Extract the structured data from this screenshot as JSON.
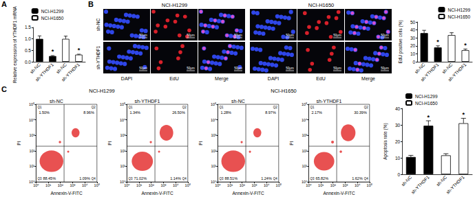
{
  "panel_labels": [
    "A",
    "B",
    "C"
  ],
  "chart_data": [
    {
      "type": "bar",
      "ylabel": "Relative expression of YTHDF1 mRNA",
      "categories": [
        "sh-NC",
        "sh-YTHDF1",
        "sh-NC",
        "sh-YTHDF1"
      ],
      "series": [
        {
          "name": "NCI-H1299",
          "color": "#000000",
          "values": [
            1.0,
            0.25,
            null,
            null
          ],
          "errors": [
            0.13,
            0.02,
            null,
            null
          ]
        },
        {
          "name": "NCI-H1650",
          "color": "#ffffff",
          "values": [
            null,
            null,
            1.0,
            0.31
          ],
          "errors": [
            null,
            null,
            0.12,
            0.02
          ]
        }
      ],
      "significance": [
        null,
        "*",
        null,
        "*"
      ],
      "ylim": [
        0,
        1.5
      ],
      "yticks": [
        {
          "value": 0,
          "label": "0.0"
        },
        0.5,
        {
          "value": 1,
          "label": "1.0"
        },
        1.5
      ],
      "legend": "top",
      "grid": false
    },
    {
      "type": "bar",
      "ylabel": "EdU positive cells (%)",
      "categories": [
        "sh-NC",
        "sh-YTHDF1",
        "sh-NC",
        "sh-YTHDF1"
      ],
      "series": [
        {
          "name": "NCI-H1299",
          "color": "#000000",
          "values": [
            36,
            18,
            null,
            null
          ],
          "errors": [
            3.5,
            2,
            null,
            null
          ]
        },
        {
          "name": "NCI-H1650",
          "color": "#ffffff",
          "values": [
            null,
            null,
            33.5,
            14.5
          ],
          "errors": [
            null,
            null,
            3,
            1.5
          ]
        }
      ],
      "significance": [
        null,
        "*",
        null,
        "*"
      ],
      "ylim": [
        0,
        50
      ],
      "yticks": [
        0,
        10,
        20,
        30,
        40,
        50
      ],
      "legend": "top-right",
      "grid": false
    },
    {
      "type": "bar",
      "ylabel": "Apoptosis rate (%)",
      "categories": [
        "sh-NC",
        "sh-YTHDF1",
        "sh-NC",
        "sh-YTHDF1"
      ],
      "series": [
        {
          "name": "NCI-H1299",
          "color": "#000000",
          "values": [
            10.5,
            29.5,
            null,
            null
          ],
          "errors": [
            1,
            3,
            null,
            null
          ]
        },
        {
          "name": "NCI-H1650",
          "color": "#ffffff",
          "values": [
            null,
            null,
            11.5,
            31
          ],
          "errors": [
            null,
            null,
            1,
            3
          ]
        }
      ],
      "significance": [
        null,
        "*",
        null,
        "*"
      ],
      "ylim": [
        0,
        40
      ],
      "yticks": [
        0,
        10,
        20,
        30,
        40
      ],
      "legend": "top-left",
      "grid": false
    }
  ],
  "microscopy": {
    "groups": [
      "NCI-H1299",
      "NCI-H1650"
    ],
    "rows": [
      "sh-NC",
      "sh-YTHDF1"
    ],
    "channels": [
      "DAPI",
      "EdU",
      "Merge"
    ],
    "scale_bar": "50μm"
  },
  "flow_cytometry": {
    "type": "scatter",
    "xlabel": "Annexin-V-FITC",
    "ylabel": "PI",
    "log": true,
    "xlim": [
      1,
      100000
    ],
    "ylim": [
      1,
      100000
    ],
    "xticks": [
      {
        "value": 1,
        "label": "10⁰"
      },
      {
        "value": 10,
        "label": "10¹"
      },
      {
        "value": 100,
        "label": "10²"
      },
      {
        "value": 1000,
        "label": "10³"
      },
      {
        "value": 10000,
        "label": "10⁴"
      },
      {
        "value": 100000,
        "label": "10⁵"
      }
    ],
    "yticks": [
      {
        "value": 1,
        "label": "10⁰"
      },
      {
        "value": 10,
        "label": "10¹"
      },
      {
        "value": 100,
        "label": "10²"
      },
      {
        "value": 1000,
        "label": "10³"
      },
      {
        "value": 10000,
        "label": "10⁴"
      },
      {
        "value": 100000,
        "label": "10⁵"
      }
    ],
    "gates": {
      "x": 200,
      "y": 200
    },
    "quadrant_names": [
      "Q1",
      "Q2",
      "Q3",
      "Q4"
    ],
    "plots": [
      {
        "group": "NCI-H1299",
        "condition": "sh-NC",
        "quadrants": [
          1.5,
          8.96,
          88.45,
          1.09
        ],
        "quadrant_labels": [
          "1.50%",
          "8.96%",
          "88.45%",
          "1.09%"
        ]
      },
      {
        "group": "NCI-H1299",
        "condition": "sh-YTHDF1",
        "quadrants": [
          1.34,
          26.5,
          71.02,
          1.14
        ],
        "quadrant_labels": [
          "1.34%",
          "26.50%",
          "71.02%",
          "1.14%"
        ]
      },
      {
        "group": "NCI-H1650",
        "condition": "sh-NC",
        "quadrants": [
          1.28,
          8.97,
          88.51,
          1.24
        ],
        "quadrant_labels": [
          "1.28%",
          "8.97%",
          "88.51%",
          "1.24%"
        ]
      },
      {
        "group": "NCI-H1650",
        "condition": "sh-YTHDF1",
        "quadrants": [
          2.17,
          30.39,
          65.82,
          1.62
        ],
        "quadrant_labels": [
          "2.17%",
          "30.39%",
          "65.82%",
          "1.62%"
        ]
      }
    ]
  }
}
